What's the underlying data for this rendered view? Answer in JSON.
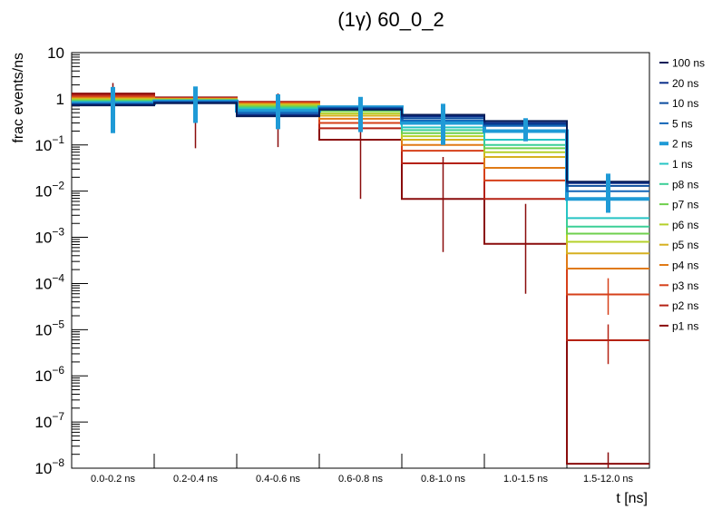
{
  "chart_data": {
    "type": "line",
    "title": "(1γ) 60_0_2",
    "xlabel": "t [ns]",
    "ylabel": "frac events/ns",
    "yscale": "log",
    "ylim": [
      1e-08,
      10
    ],
    "y_tick_labels": [
      {
        "base": "10",
        "exp": "−8",
        "value": 1e-08
      },
      {
        "base": "10",
        "exp": "−7",
        "value": 1e-07
      },
      {
        "base": "10",
        "exp": "−6",
        "value": 1e-06
      },
      {
        "base": "10",
        "exp": "−5",
        "value": 1e-05
      },
      {
        "base": "10",
        "exp": "−4",
        "value": 0.0001
      },
      {
        "base": "10",
        "exp": "−3",
        "value": 0.001
      },
      {
        "base": "10",
        "exp": "−2",
        "value": 0.01
      },
      {
        "base": "10",
        "exp": "−1",
        "value": 0.1
      },
      {
        "base": "1",
        "exp": "",
        "value": 1
      },
      {
        "base": "10",
        "exp": "",
        "value": 10
      }
    ],
    "categories": [
      "0.0-0.2 ns",
      "0.2-0.4 ns",
      "0.4-0.6 ns",
      "0.6-0.8 ns",
      "0.8-1.0 ns",
      "1.0-1.5 ns",
      "1.5-12.0 ns"
    ],
    "legend_position": "right",
    "grid": false,
    "series": [
      {
        "name": "100 ns",
        "color": "#081d58",
        "values": [
          0.72,
          0.8,
          0.42,
          0.58,
          0.45,
          0.33,
          0.016
        ]
      },
      {
        "name": "20 ns",
        "color": "#0b2f8a",
        "values": [
          0.74,
          0.82,
          0.44,
          0.6,
          0.42,
          0.3,
          0.015
        ]
      },
      {
        "name": "10 ns",
        "color": "#0a4c9e",
        "values": [
          0.76,
          0.84,
          0.46,
          0.62,
          0.38,
          0.28,
          0.013
        ]
      },
      {
        "name": "5 ns",
        "color": "#1366b8",
        "values": [
          0.78,
          0.86,
          0.5,
          0.64,
          0.34,
          0.26,
          0.01
        ]
      },
      {
        "name": "2 ns",
        "color": "#1f9ad6",
        "bold": true,
        "values": [
          0.8,
          0.88,
          0.55,
          0.66,
          0.3,
          0.2,
          0.0068
        ]
      },
      {
        "name": "1 ns",
        "color": "#26c4c4",
        "values": [
          0.84,
          0.9,
          0.6,
          0.62,
          0.24,
          0.13,
          0.0026
        ]
      },
      {
        "name": "p8 ns",
        "color": "#3ccf97",
        "values": [
          0.88,
          0.92,
          0.64,
          0.58,
          0.21,
          0.1,
          0.0017
        ]
      },
      {
        "name": "p7 ns",
        "color": "#6fd04e",
        "values": [
          0.92,
          0.94,
          0.68,
          0.54,
          0.18,
          0.085,
          0.0012
        ]
      },
      {
        "name": "p6 ns",
        "color": "#b5d02a",
        "values": [
          0.96,
          0.96,
          0.72,
          0.48,
          0.155,
          0.07,
          0.0008
        ]
      },
      {
        "name": "p5 ns",
        "color": "#d6b020",
        "values": [
          1.0,
          0.98,
          0.76,
          0.43,
          0.13,
          0.055,
          0.00045
        ]
      },
      {
        "name": "p4 ns",
        "color": "#e07a16",
        "values": [
          1.05,
          1.0,
          0.79,
          0.37,
          0.1,
          0.032,
          0.00021
        ]
      },
      {
        "name": "p3 ns",
        "color": "#d6401a",
        "values": [
          1.1,
          1.02,
          0.82,
          0.3,
          0.075,
          0.017,
          5.8e-05
        ]
      },
      {
        "name": "p2 ns",
        "color": "#b52214",
        "values": [
          1.2,
          1.04,
          0.84,
          0.23,
          0.04,
          0.0068,
          5.9e-06
        ]
      },
      {
        "name": "p1 ns",
        "color": "#8a0c0c",
        "values": [
          1.3,
          1.07,
          0.86,
          0.13,
          0.0068,
          0.00072,
          1.25e-08
        ]
      }
    ],
    "error_bars": [
      {
        "series": "p1 ns",
        "values": [
          [
            0.6,
            2.2
          ],
          [
            0.085,
            1.7
          ],
          [
            0.09,
            1.3
          ],
          [
            0.0068,
            0.9
          ],
          [
            0.00048,
            0.055
          ],
          [
            6e-05,
            0.0053
          ],
          [
            1e-08,
            2.2e-08
          ]
        ]
      },
      {
        "series": "p2 ns",
        "values": [
          null,
          null,
          null,
          null,
          null,
          null,
          [
            1.8e-06,
            1.3e-05
          ]
        ]
      },
      {
        "series": "p3 ns",
        "values": [
          null,
          null,
          null,
          null,
          null,
          null,
          [
            2.1e-05,
            0.00013
          ]
        ]
      },
      {
        "series": "2 ns",
        "values": [
          [
            0.18,
            1.8
          ],
          [
            0.3,
            1.85
          ],
          [
            0.22,
            1.25
          ],
          [
            0.19,
            1.1
          ],
          [
            0.1,
            0.78
          ],
          [
            0.12,
            0.38
          ],
          [
            0.0034,
            0.024
          ]
        ]
      }
    ]
  }
}
